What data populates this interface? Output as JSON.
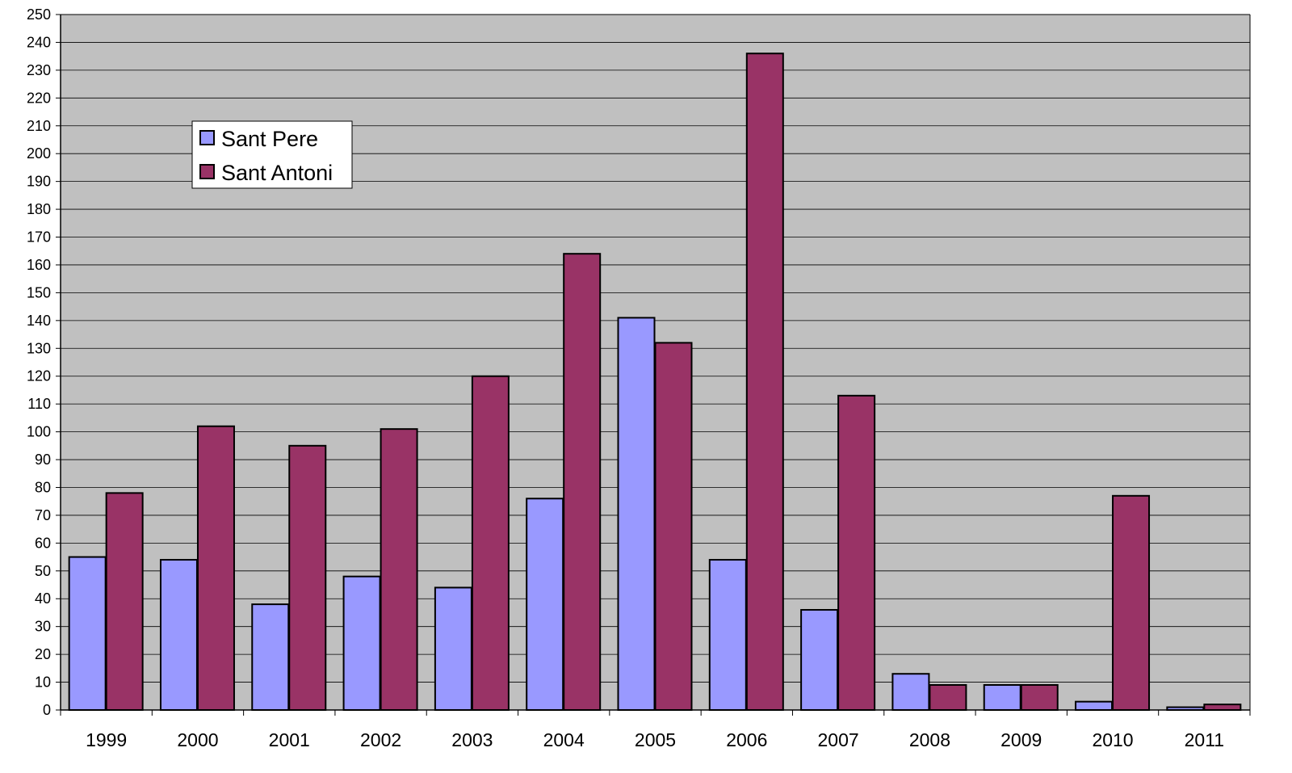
{
  "chart_data": {
    "type": "bar",
    "categories": [
      "1999",
      "2000",
      "2001",
      "2002",
      "2003",
      "2004",
      "2005",
      "2006",
      "2007",
      "2008",
      "2009",
      "2010",
      "2011"
    ],
    "series": [
      {
        "name": "Sant Pere",
        "color": "#9999ff",
        "values": [
          55,
          54,
          38,
          48,
          44,
          76,
          141,
          54,
          36,
          13,
          9,
          3,
          1
        ]
      },
      {
        "name": "Sant Antoni",
        "color": "#993366",
        "values": [
          78,
          102,
          95,
          101,
          120,
          164,
          132,
          236,
          113,
          9,
          9,
          77,
          2
        ]
      }
    ],
    "ylim": [
      0,
      250
    ],
    "ytick_step": 10,
    "grid": true,
    "legend_position": "top-left",
    "plot_background": "#c0c0c0",
    "title": "",
    "xlabel": "",
    "ylabel": ""
  }
}
